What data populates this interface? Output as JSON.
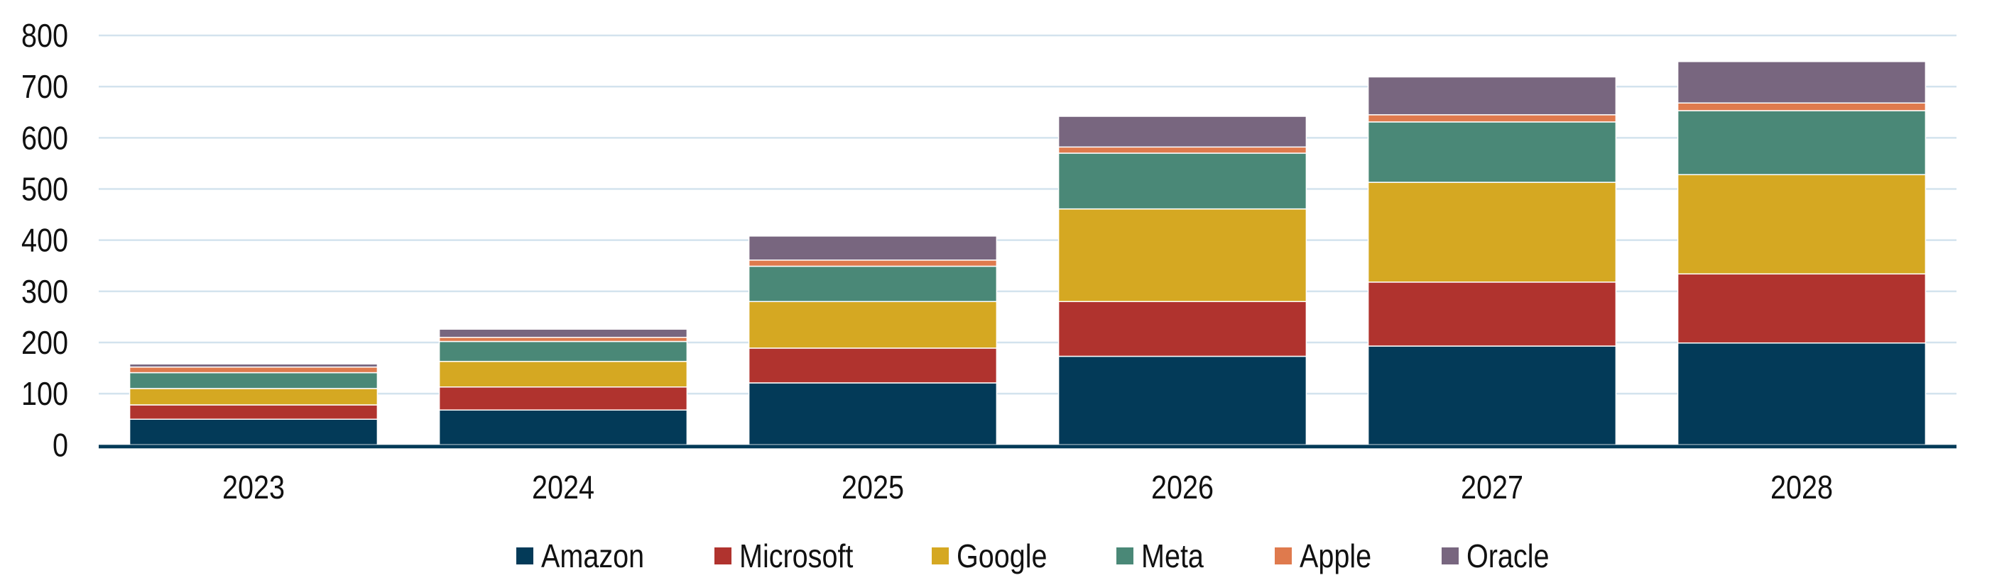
{
  "chart_data": {
    "type": "bar",
    "stacked": true,
    "title": "",
    "xlabel": "",
    "ylabel": "",
    "categories": [
      "2023",
      "2024",
      "2025",
      "2026",
      "2027",
      "2028"
    ],
    "ylim": [
      0,
      800
    ],
    "yticks": [
      "0",
      "100",
      "200",
      "300",
      "400",
      "500",
      "600",
      "700",
      "800"
    ],
    "grid": true,
    "legend_position": "bottom",
    "series": [
      {
        "name": "Amazon",
        "color": "#033a58",
        "values": [
          50,
          68,
          121,
          173,
          193,
          199
        ]
      },
      {
        "name": "Microsoft",
        "color": "#b0332e",
        "values": [
          28,
          45,
          68,
          107,
          125,
          135
        ]
      },
      {
        "name": "Google",
        "color": "#d5a822",
        "values": [
          32,
          50,
          91,
          181,
          195,
          194
        ]
      },
      {
        "name": "Meta",
        "color": "#4a8877",
        "values": [
          31,
          39,
          69,
          109,
          118,
          125
        ]
      },
      {
        "name": "Apple",
        "color": "#df7a4d",
        "values": [
          11,
          8,
          12,
          12,
          14,
          15
        ]
      },
      {
        "name": "Oracle",
        "color": "#78667f",
        "values": [
          6,
          16,
          47,
          60,
          74,
          81
        ]
      }
    ]
  },
  "colors": {
    "gridline": "#d3e3ee",
    "axis": "#033a58",
    "separator": "#ffffff"
  }
}
